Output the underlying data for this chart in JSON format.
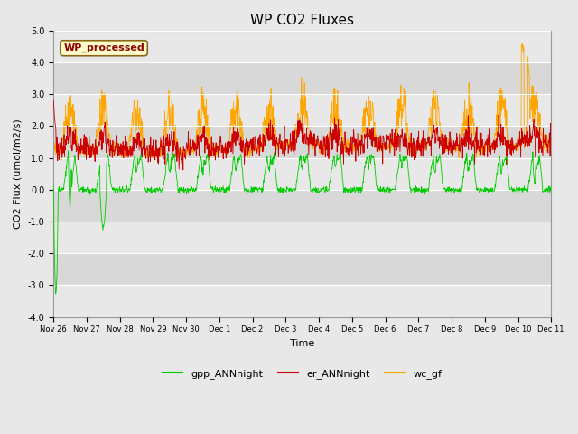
{
  "title": "WP CO2 Fluxes",
  "xlabel": "Time",
  "ylabel": "CO2 Flux (umol/m2/s)",
  "ylim": [
    -4.0,
    5.0
  ],
  "yticks": [
    -4.0,
    -3.0,
    -2.0,
    -1.0,
    0.0,
    1.0,
    2.0,
    3.0,
    4.0,
    5.0
  ],
  "xtick_labels": [
    "Nov 26",
    "Nov 27",
    "Nov 28",
    "Nov 29",
    "Nov 30",
    "Dec 1",
    "Dec 2",
    "Dec 3",
    "Dec 4",
    "Dec 5",
    "Dec 6",
    "Dec 7",
    "Dec 8",
    "Dec 9",
    "Dec 10",
    "Dec 11"
  ],
  "n_days": 15,
  "color_gpp": "#00CC00",
  "color_er": "#CC0000",
  "color_wc": "#FFA500",
  "fig_bg": "#E8E8E8",
  "plot_bg": "#D8D8D8",
  "band_light": "#E8E8E8",
  "annotation_text": "WP_processed",
  "annotation_color": "#8B0000",
  "annotation_bg": "#FFFFCC",
  "legend_labels": [
    "gpp_ANNnight",
    "er_ANNnight",
    "wc_gf"
  ],
  "title_fontsize": 11,
  "axis_label_fontsize": 8,
  "tick_fontsize": 7,
  "seed": 42,
  "n_per_day": 96
}
